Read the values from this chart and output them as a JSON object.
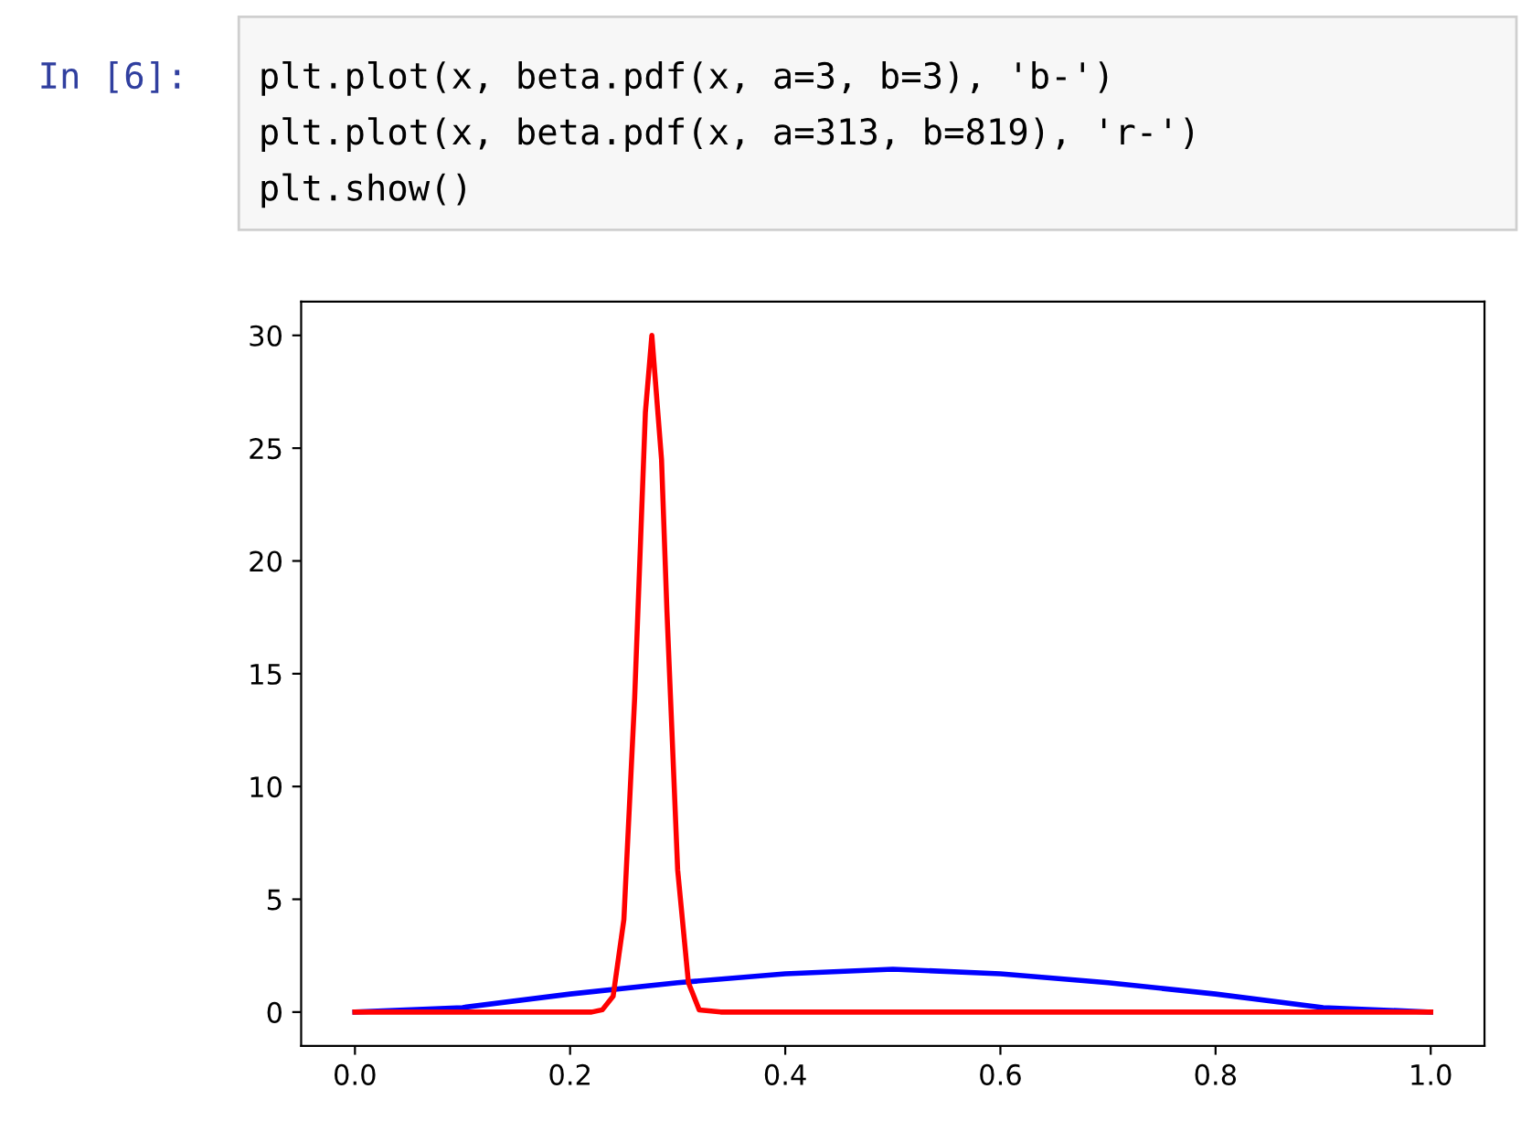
{
  "chart_data": {
    "type": "line",
    "annotations": [
      "In [6]:",
      "plt.plot(x, beta.pdf(x, a=3, b=3), 'b-')",
      "plt.plot(x, beta.pdf(x, a=313, b=819), 'r-')",
      "plt.show()"
    ],
    "series": [
      {
        "color": "#0000ff",
        "x": [
          0,
          0.1,
          0.2,
          0.3,
          0.4,
          0.5,
          0.6,
          0.7,
          0.8,
          0.9,
          1.0
        ],
        "values": [
          0,
          0.2,
          0.8,
          1.3,
          1.7,
          1.9,
          1.7,
          1.3,
          0.8,
          0.2,
          0
        ]
      },
      {
        "color": "#ff0000",
        "x": [
          0,
          0.22,
          0.23,
          0.24,
          0.25,
          0.26,
          0.27,
          0.276,
          0.285,
          0.29,
          0.3,
          0.31,
          0.32,
          0.34,
          1.0
        ],
        "values": [
          0,
          0,
          0.1,
          0.7,
          4.1,
          13.9,
          26.6,
          30,
          24.5,
          17.8,
          6.3,
          1.3,
          0.1,
          0,
          0
        ]
      }
    ],
    "xlim": [
      -0.05,
      1.05
    ],
    "ylim": [
      -1.5,
      31.5
    ],
    "xticks": [
      {
        "value": 0,
        "label": "0.0"
      },
      {
        "value": 0.2,
        "label": "0.2"
      },
      {
        "value": 0.4,
        "label": "0.4"
      },
      {
        "value": 0.6,
        "label": "0.6"
      },
      {
        "value": 0.8,
        "label": "0.8"
      },
      {
        "value": 1.0,
        "label": "1.0"
      }
    ],
    "yticks": [
      0,
      5,
      10,
      15,
      20,
      25,
      30
    ],
    "grid": false,
    "legend": false,
    "marker": "none",
    "line_style": "solid"
  }
}
